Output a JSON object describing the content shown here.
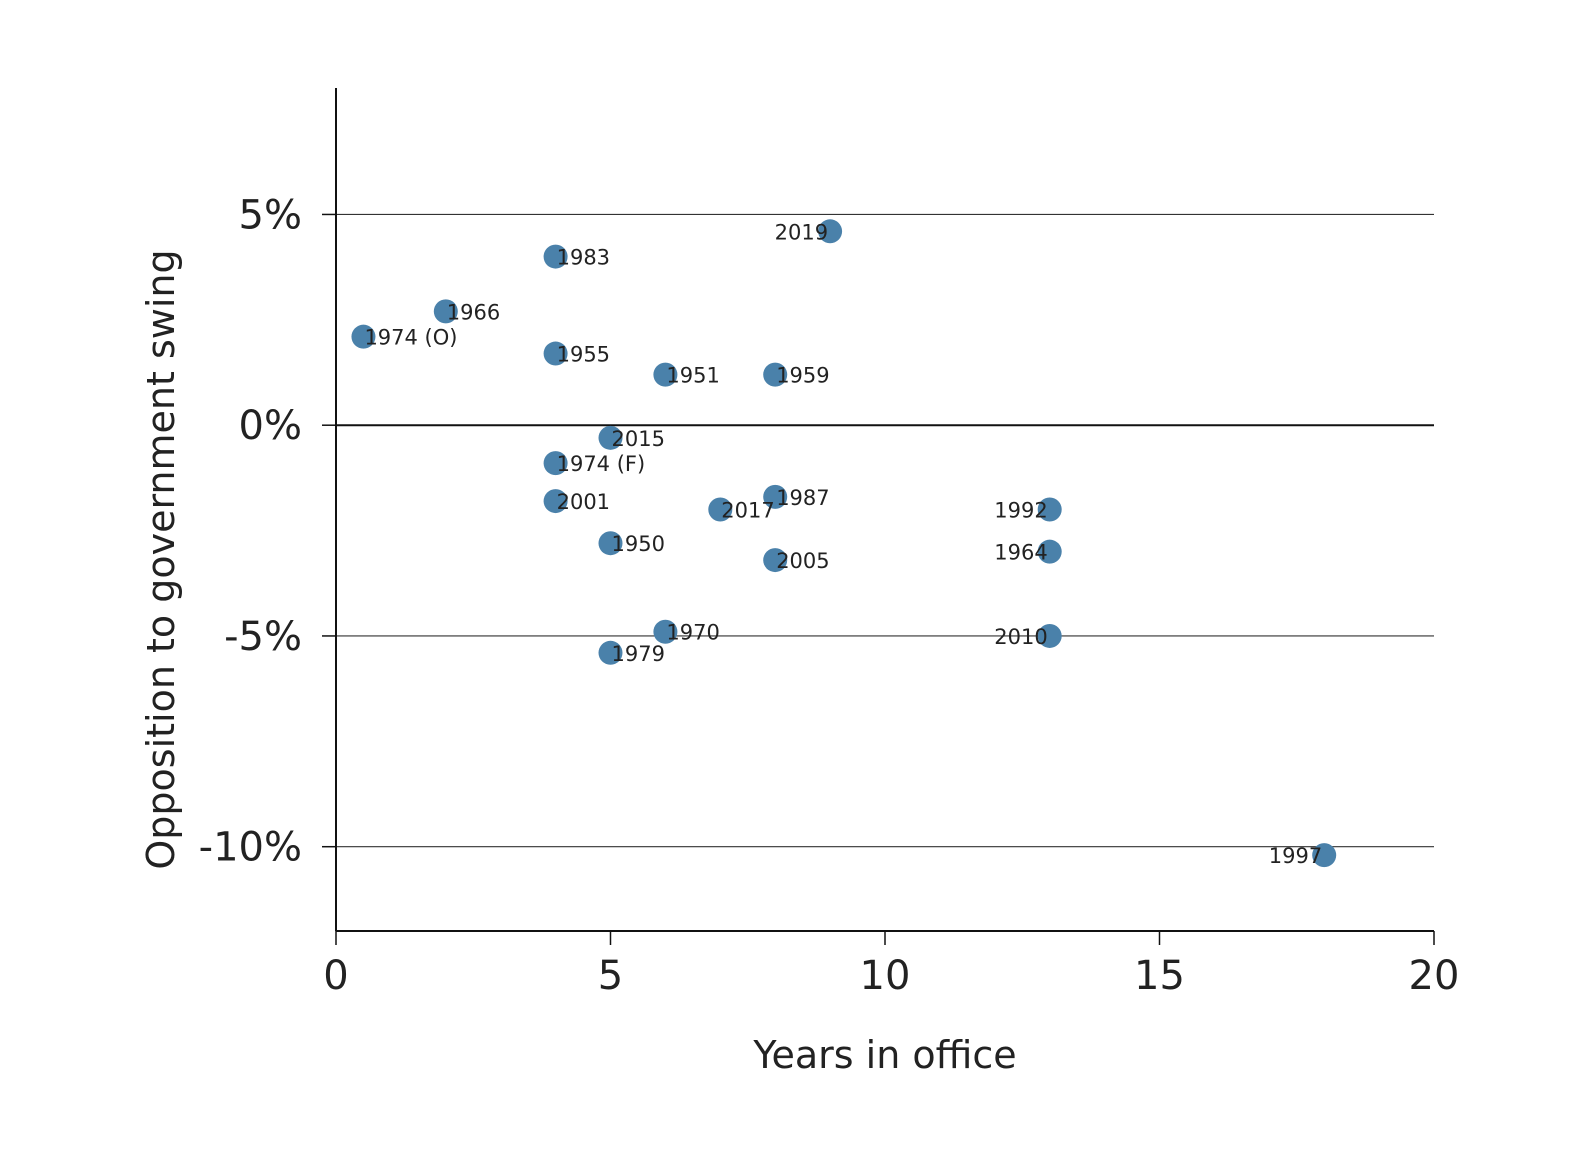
{
  "chart_data": {
    "type": "scatter",
    "title": "",
    "xlabel": "Years in office",
    "ylabel": "Opposition to government swing",
    "xlim": [
      0,
      20
    ],
    "ylim": [
      -12,
      8
    ],
    "x_ticks": [
      0,
      5,
      10,
      15,
      20
    ],
    "x_tick_labels": [
      "0",
      "5",
      "10",
      "15",
      "20"
    ],
    "y_ticks": [
      5,
      0,
      -5,
      -10
    ],
    "y_tick_labels": [
      "5%",
      "0%",
      "-5%",
      "-10%"
    ],
    "grid": "horizontal lines at y ticks",
    "marker_color": "#4a81aa",
    "points": [
      {
        "label": "2019",
        "x": 9,
        "y": 4.6
      },
      {
        "label": "1983",
        "x": 4,
        "y": 4.0
      },
      {
        "label": "1966",
        "x": 2,
        "y": 2.7
      },
      {
        "label": "1974 (O)",
        "x": 0.5,
        "y": 2.1
      },
      {
        "label": "1955",
        "x": 4,
        "y": 1.7
      },
      {
        "label": "1951",
        "x": 6,
        "y": 1.2
      },
      {
        "label": "1959",
        "x": 8,
        "y": 1.2
      },
      {
        "label": "2015",
        "x": 5,
        "y": -0.3
      },
      {
        "label": "1974 (F)",
        "x": 4,
        "y": -0.9
      },
      {
        "label": "2001",
        "x": 4,
        "y": -1.8
      },
      {
        "label": "1987",
        "x": 8,
        "y": -1.7
      },
      {
        "label": "2017",
        "x": 7,
        "y": -2.0
      },
      {
        "label": "1992",
        "x": 13,
        "y": -2.0
      },
      {
        "label": "1950",
        "x": 5,
        "y": -2.8
      },
      {
        "label": "2005",
        "x": 8,
        "y": -3.2
      },
      {
        "label": "1964",
        "x": 13,
        "y": -3.0
      },
      {
        "label": "1970",
        "x": 6,
        "y": -4.9
      },
      {
        "label": "2010",
        "x": 13,
        "y": -5.0
      },
      {
        "label": "1979",
        "x": 5,
        "y": -5.4
      },
      {
        "label": "1997",
        "x": 18,
        "y": -10.2
      }
    ]
  }
}
